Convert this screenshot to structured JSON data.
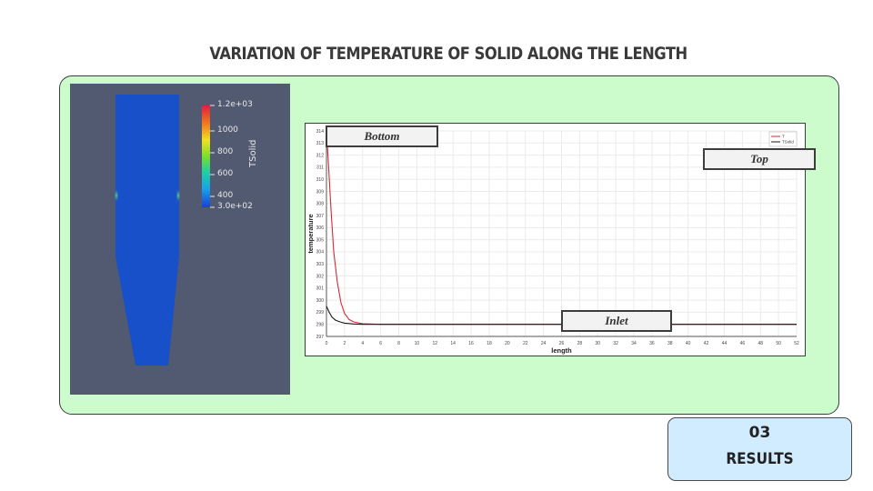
{
  "slide": {
    "title": "VARIATION OF TEMPERATURE OF SOLID ALONG THE LENGTH",
    "badge_number": "03",
    "badge_label": "RESULTS"
  },
  "colorbar": {
    "title": "TSolid",
    "tick_labels": [
      "1.2e+03",
      "1000",
      "800",
      "600",
      "400",
      "3.0e+02"
    ]
  },
  "annotations": {
    "bottom": "Bottom",
    "top": "Top",
    "inlet": "Inlet"
  },
  "colors": {
    "panel": "#ccfccb",
    "render_background": "#525a71",
    "geometry_fill": "#1750c8",
    "series_T": "#d62839",
    "series_TSolid": "#1a1a1a"
  },
  "chart_data": {
    "type": "line",
    "xlabel": "length",
    "ylabel": "temperature",
    "xlim": [
      0,
      52
    ],
    "ylim": [
      297,
      314
    ],
    "x_ticks": [
      0,
      2,
      4,
      6,
      8,
      10,
      12,
      14,
      16,
      18,
      20,
      22,
      24,
      26,
      28,
      30,
      32,
      34,
      36,
      38,
      40,
      42,
      44,
      46,
      48,
      50,
      52
    ],
    "y_ticks": [
      297,
      298,
      299,
      300,
      301,
      302,
      303,
      304,
      305,
      306,
      307,
      308,
      309,
      310,
      311,
      312,
      313,
      314
    ],
    "grid": true,
    "legend_position": "top-right",
    "series": [
      {
        "name": "T",
        "color": "#d62839",
        "x": [
          0,
          0.2,
          0.5,
          0.8,
          1.2,
          1.6,
          2,
          2.5,
          3,
          4,
          6,
          10,
          20,
          30,
          40,
          52
        ],
        "y": [
          314,
          311.5,
          307.5,
          304,
          301.5,
          299.8,
          298.9,
          298.4,
          298.2,
          298.05,
          298,
          298,
          298,
          298,
          298,
          298
        ]
      },
      {
        "name": "TSolid",
        "color": "#1a1a1a",
        "x": [
          0,
          0.3,
          0.6,
          1,
          1.5,
          2,
          3,
          4,
          6,
          10,
          20,
          30,
          40,
          52
        ],
        "y": [
          299.5,
          299.0,
          298.6,
          298.35,
          298.2,
          298.1,
          298.03,
          298,
          298,
          298,
          298,
          298,
          298,
          298
        ]
      }
    ]
  }
}
